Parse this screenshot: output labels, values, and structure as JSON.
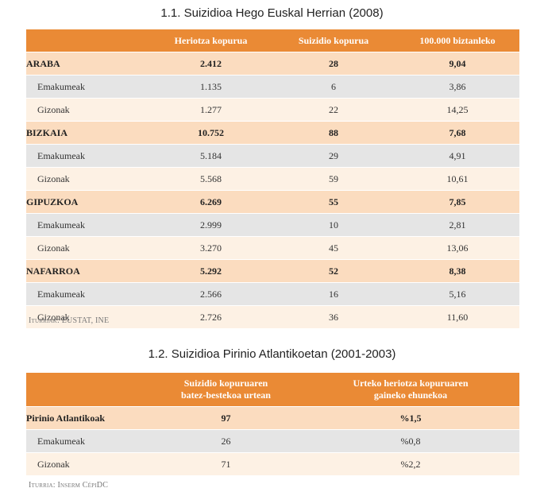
{
  "table1": {
    "title": "1.1. Suizidioa Hego Euskal Herrian (2008)",
    "headers": [
      "",
      "Heriotza kopurua",
      "Suizidio kopurua",
      "100.000 biztanleko"
    ],
    "rows": [
      {
        "label": "ARABA",
        "c1": "2.412",
        "c2": "28",
        "c3": "9,04"
      },
      {
        "label": "Emakumeak",
        "c1": "1.135",
        "c2": "6",
        "c3": "3,86"
      },
      {
        "label": "Gizonak",
        "c1": "1.277",
        "c2": "22",
        "c3": "14,25"
      },
      {
        "label": "BIZKAIA",
        "c1": "10.752",
        "c2": "88",
        "c3": "7,68"
      },
      {
        "label": "Emakumeak",
        "c1": "5.184",
        "c2": "29",
        "c3": "4,91"
      },
      {
        "label": "Gizonak",
        "c1": "5.568",
        "c2": "59",
        "c3": "10,61"
      },
      {
        "label": "GIPUZKOA",
        "c1": "6.269",
        "c2": "55",
        "c3": "7,85"
      },
      {
        "label": "Emakumeak",
        "c1": "2.999",
        "c2": "10",
        "c3": "2,81"
      },
      {
        "label": "Gizonak",
        "c1": "3.270",
        "c2": "45",
        "c3": "13,06"
      },
      {
        "label": "NAFARROA",
        "c1": "5.292",
        "c2": "52",
        "c3": "8,38"
      },
      {
        "label": "Emakumeak",
        "c1": "2.566",
        "c2": "16",
        "c3": "5,16"
      },
      {
        "label": "Gizonak",
        "c1": "2.726",
        "c2": "36",
        "c3": "11,60"
      }
    ],
    "source": "Iturriak: EUSTAT, INE"
  },
  "table2": {
    "title": "1.2. Suizidioa Pirinio Atlantikoetan (2001-2003)",
    "headers": [
      "",
      "Suizidio kopuruaren\nbatez-bestekoa urtean",
      "Urteko heriotza kopuruaren\ngaineko ehunekoa"
    ],
    "rows": [
      {
        "label": "Pirinio Atlantikoak",
        "c1": "97",
        "c2": "%1,5"
      },
      {
        "label": "Emakumeak",
        "c1": "26",
        "c2": "%0,8"
      },
      {
        "label": "Gizonak",
        "c1": "71",
        "c2": "%2,2"
      }
    ],
    "source": "Iturria: Inserm CépiDC"
  },
  "colors": {
    "header": "#ea8a35",
    "region_row": "#fbdcbf",
    "female_row": "#e5e5e5",
    "male_row": "#fdf1e4"
  }
}
